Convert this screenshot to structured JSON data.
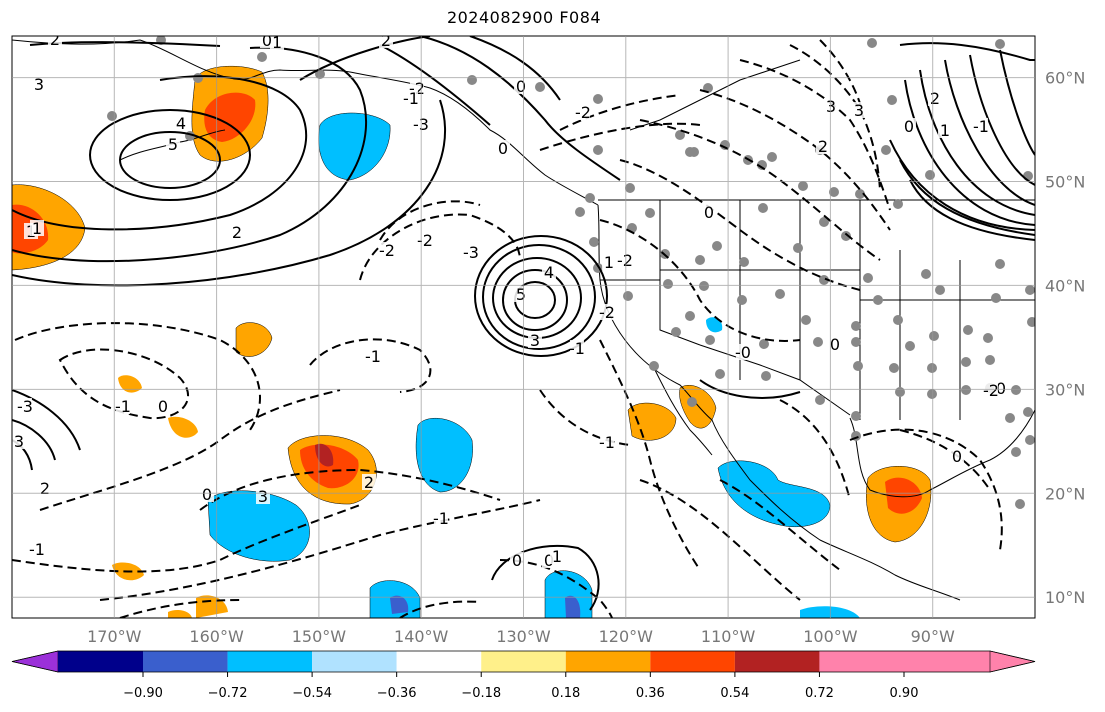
{
  "title": "2024082900 F084",
  "map": {
    "projection": "plate-carree",
    "lon_range": [
      -180,
      -80
    ],
    "lat_range": [
      8,
      64
    ],
    "grid": true,
    "lon_labels": [
      "170°W",
      "160°W",
      "150°W",
      "140°W",
      "130°W",
      "120°W",
      "110°W",
      "100°W",
      "90°W"
    ],
    "lat_labels": [
      "60°N",
      "50°N",
      "40°N",
      "30°N",
      "20°N",
      "10°N"
    ],
    "contour_labels": [
      "2",
      "1",
      "3",
      "4",
      "5",
      "2",
      "0",
      "-2",
      "-1",
      "0",
      "2",
      "1",
      "-3",
      "-2",
      "0",
      "3",
      "2",
      "3",
      "0",
      "1",
      "-2",
      "-2",
      "4",
      "5",
      "3",
      "-3",
      "-1",
      "-2",
      "-1",
      "-0",
      "0",
      "-1",
      "0",
      "2",
      "0",
      "-1",
      "0",
      "-1",
      "0",
      "1",
      "-1",
      "0",
      "3",
      "2",
      "0",
      "1",
      "2",
      "3",
      "-1",
      "-3",
      "-2",
      "0",
      "-2",
      "1"
    ]
  },
  "colorbar": {
    "ticks": [
      "−0.90",
      "−0.72",
      "−0.54",
      "−0.36",
      "−0.18",
      "0.18",
      "0.36",
      "0.54",
      "0.72",
      "0.90"
    ],
    "colors": [
      "#9b30d9",
      "#00008b",
      "#3a5fcd",
      "#00bfff",
      "#b0e2ff",
      "#ffffff",
      "#fff08a",
      "#ffa500",
      "#ff4500",
      "#b22222",
      "#ff82ab"
    ]
  }
}
